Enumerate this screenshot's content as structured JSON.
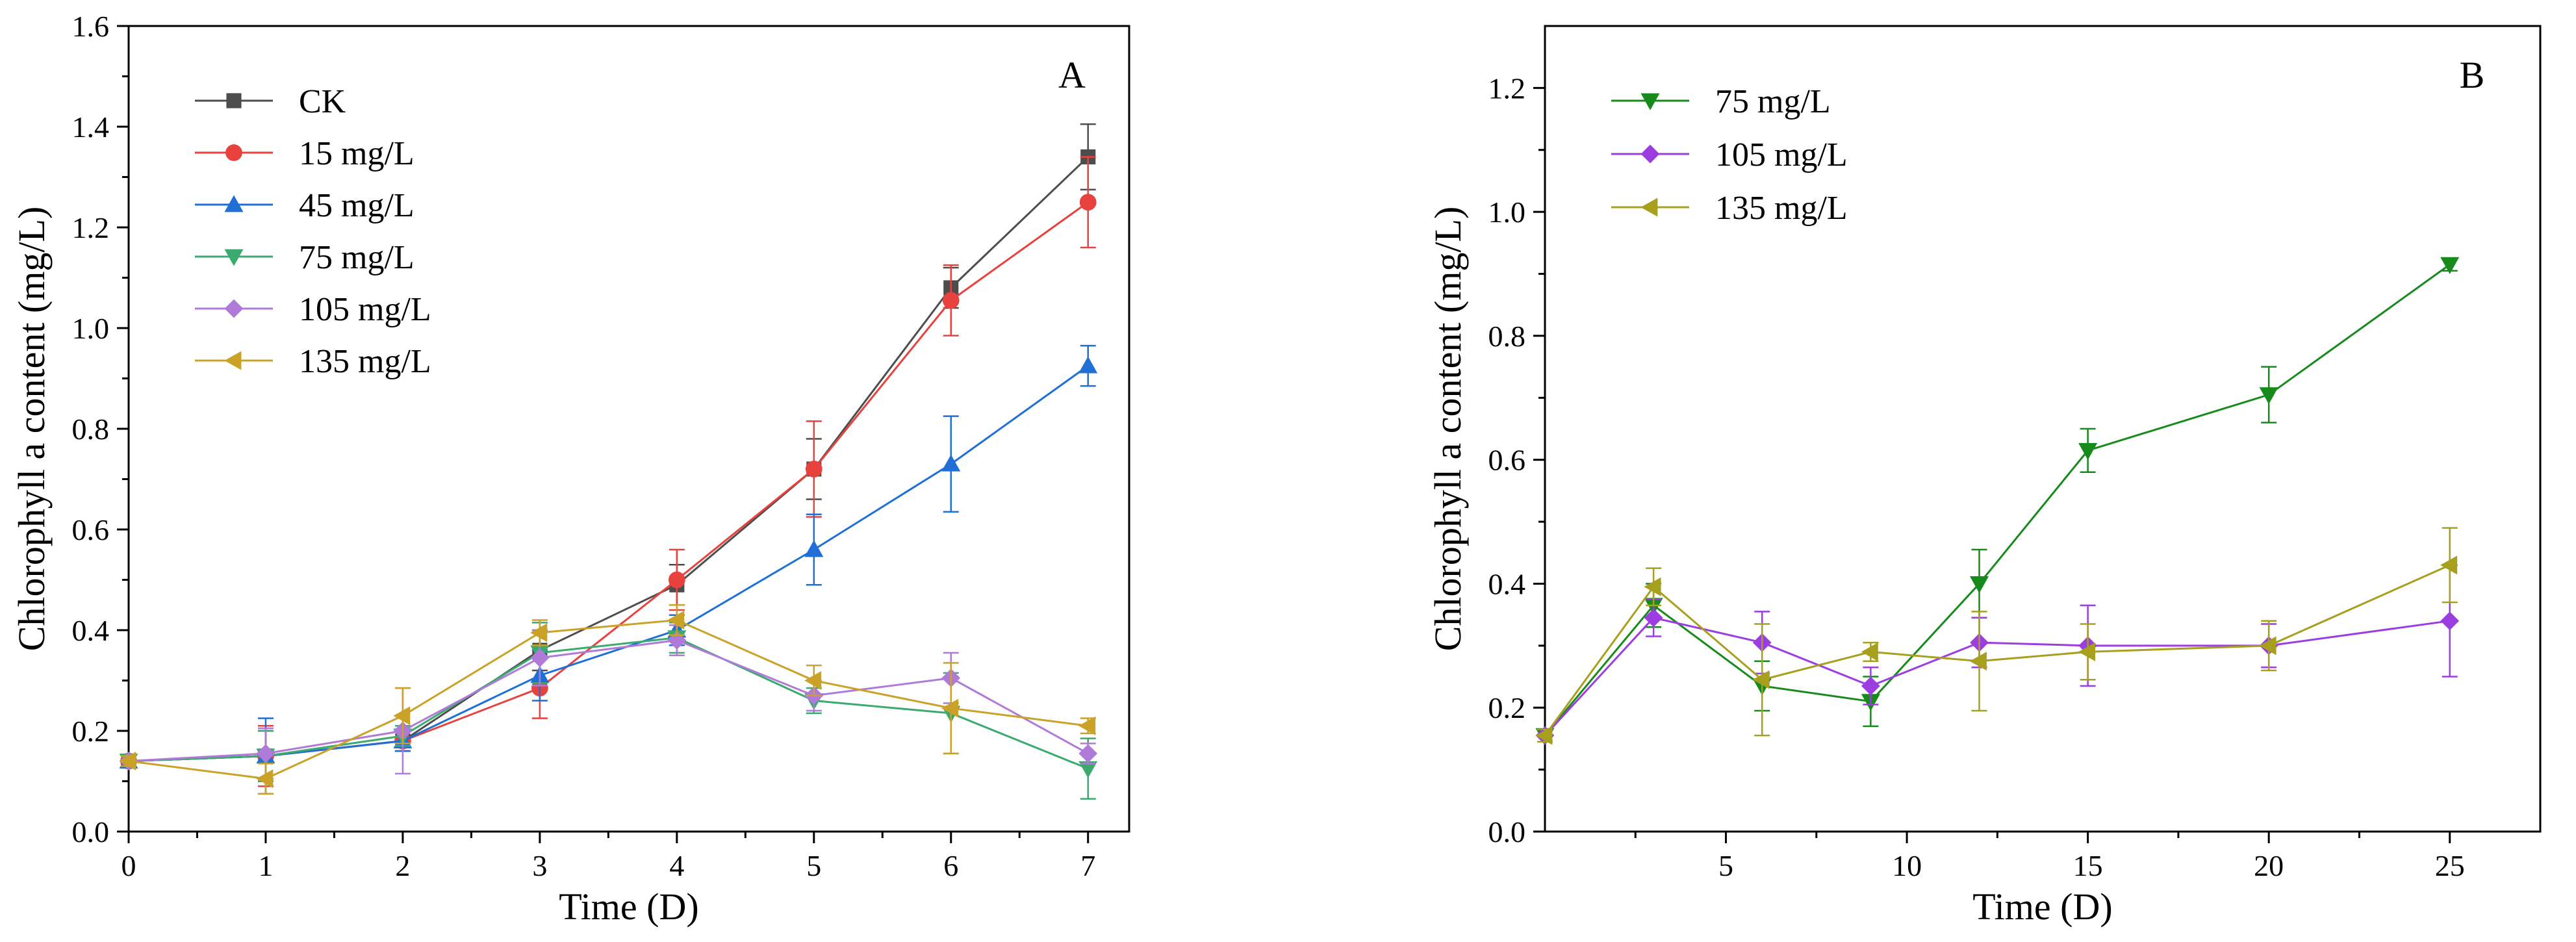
{
  "chart_data": [
    {
      "type": "line",
      "panel_label": "A",
      "xlabel": "Time (D)",
      "ylabel": "Chlorophyll a content (mg/L)",
      "xlim": [
        0,
        7.3
      ],
      "ylim": [
        0,
        1.6
      ],
      "x_ticks": [
        "0",
        "1",
        "2",
        "3",
        "4",
        "5",
        "6",
        "7"
      ],
      "y_ticks": [
        "0.0",
        "0.2",
        "0.4",
        "0.6",
        "0.8",
        "1.0",
        "1.2",
        "1.4",
        "1.6"
      ],
      "legend_position": "top-left",
      "grid": false,
      "x": [
        0,
        1,
        2,
        3,
        4,
        5,
        6,
        7
      ],
      "series": [
        {
          "name": "CK",
          "color": "#4d4d4d",
          "marker": "square",
          "values": [
            0.14,
            0.15,
            0.18,
            0.36,
            0.49,
            0.72,
            1.08,
            1.34
          ],
          "errors": [
            0.01,
            0.05,
            0.02,
            0.04,
            0.04,
            0.06,
            0.04,
            0.065
          ]
        },
        {
          "name": "15 mg/L",
          "color": "#e8423f",
          "marker": "circle",
          "values": [
            0.14,
            0.15,
            0.18,
            0.285,
            0.5,
            0.72,
            1.055,
            1.25
          ],
          "errors": [
            0.01,
            0.06,
            0.02,
            0.06,
            0.06,
            0.095,
            0.07,
            0.09
          ]
        },
        {
          "name": "45 mg/L",
          "color": "#1f6fd6",
          "marker": "triangle-up",
          "values": [
            0.14,
            0.15,
            0.18,
            0.31,
            0.4,
            0.56,
            0.73,
            0.925
          ],
          "errors": [
            0.01,
            0.075,
            0.02,
            0.05,
            0.03,
            0.07,
            0.095,
            0.04
          ]
        },
        {
          "name": "75 mg/L",
          "color": "#3aaa6e",
          "marker": "triangle-down",
          "values": [
            0.14,
            0.15,
            0.19,
            0.355,
            0.385,
            0.26,
            0.235,
            0.125
          ],
          "errors": [
            0.01,
            0.05,
            0.02,
            0.06,
            0.03,
            0.025,
            0.08,
            0.06
          ]
        },
        {
          "name": "105 mg/L",
          "color": "#b07ad9",
          "marker": "diamond",
          "values": [
            0.14,
            0.155,
            0.2,
            0.345,
            0.38,
            0.27,
            0.305,
            0.155
          ],
          "errors": [
            0.01,
            0.05,
            0.085,
            0.055,
            0.03,
            0.03,
            0.05,
            0.02
          ]
        },
        {
          "name": "135 mg/L",
          "color": "#c9a227",
          "marker": "triangle-left",
          "values": [
            0.14,
            0.105,
            0.23,
            0.395,
            0.42,
            0.3,
            0.245,
            0.21
          ],
          "errors": [
            0.01,
            0.03,
            0.055,
            0.025,
            0.03,
            0.03,
            0.09,
            0.015
          ]
        }
      ]
    },
    {
      "type": "line",
      "panel_label": "B",
      "xlabel": "Time (D)",
      "ylabel": "Chlorophyll a content (mg/L)",
      "xlim": [
        0,
        27.5
      ],
      "ylim": [
        0,
        1.3
      ],
      "x_ticks": [
        "5",
        "10",
        "15",
        "20",
        "25"
      ],
      "y_ticks": [
        "0.0",
        "0.2",
        "0.4",
        "0.6",
        "0.8",
        "1.0",
        "1.2"
      ],
      "legend_position": "top-left",
      "grid": false,
      "x": [
        0,
        3,
        6,
        9,
        12,
        15,
        20,
        25
      ],
      "series": [
        {
          "name": "75 mg/L",
          "color": "#178a1c",
          "marker": "triangle-down",
          "values": [
            0.155,
            0.365,
            0.235,
            0.21,
            0.4,
            0.615,
            0.705,
            0.915
          ],
          "errors": [
            0.01,
            0.035,
            0.04,
            0.04,
            0.055,
            0.035,
            0.045,
            0.01
          ]
        },
        {
          "name": "105 mg/L",
          "color": "#9b3de0",
          "marker": "diamond",
          "values": [
            0.155,
            0.345,
            0.305,
            0.235,
            0.305,
            0.3,
            0.3,
            0.34
          ],
          "errors": [
            0.01,
            0.03,
            0.05,
            0.03,
            0.04,
            0.065,
            0.035,
            0.09
          ]
        },
        {
          "name": "135 mg/L",
          "color": "#a6a01e",
          "marker": "triangle-left",
          "values": [
            0.155,
            0.395,
            0.245,
            0.29,
            0.275,
            0.29,
            0.3,
            0.43
          ],
          "errors": [
            0.01,
            0.03,
            0.09,
            0.015,
            0.08,
            0.045,
            0.04,
            0.06
          ]
        }
      ]
    }
  ]
}
